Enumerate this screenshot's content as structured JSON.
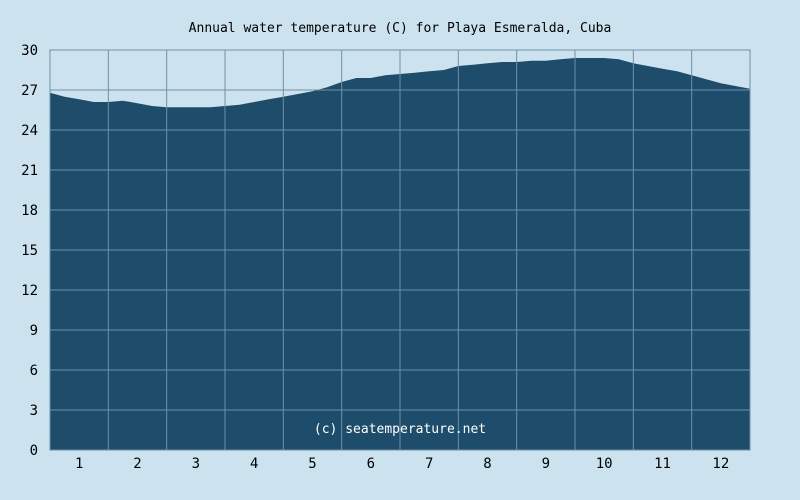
{
  "chart_data": {
    "type": "area",
    "title": "Annual water temperature (C) for Playa Esmeralda, Cuba",
    "xlabel": "",
    "ylabel": "",
    "categories": [
      "1",
      "2",
      "3",
      "4",
      "5",
      "6",
      "7",
      "8",
      "9",
      "10",
      "11",
      "12"
    ],
    "xlim": [
      0.5,
      12.5
    ],
    "ylim": [
      0,
      30
    ],
    "yticks": [
      0,
      3,
      6,
      9,
      12,
      15,
      18,
      21,
      24,
      27,
      30
    ],
    "grid": true,
    "legend": "none",
    "x": [
      0.5,
      0.75,
      1.0,
      1.25,
      1.5,
      1.75,
      2.0,
      2.25,
      2.5,
      2.75,
      3.0,
      3.25,
      3.5,
      3.75,
      4.0,
      4.25,
      4.5,
      4.75,
      5.0,
      5.25,
      5.5,
      5.75,
      6.0,
      6.25,
      6.5,
      6.75,
      7.0,
      7.25,
      7.5,
      7.75,
      8.0,
      8.25,
      8.5,
      8.75,
      9.0,
      9.25,
      9.5,
      9.75,
      10.0,
      10.25,
      10.5,
      10.75,
      11.0,
      11.25,
      11.5,
      11.75,
      12.0,
      12.25,
      12.5
    ],
    "series": [
      {
        "values": [
          26.8,
          26.5,
          26.3,
          26.1,
          26.1,
          26.2,
          26.0,
          25.8,
          25.7,
          25.7,
          25.7,
          25.7,
          25.8,
          25.9,
          26.1,
          26.3,
          26.5,
          26.7,
          26.9,
          27.2,
          27.6,
          27.9,
          27.9,
          28.1,
          28.2,
          28.3,
          28.4,
          28.5,
          28.8,
          28.9,
          29.0,
          29.1,
          29.1,
          29.2,
          29.2,
          29.3,
          29.4,
          29.4,
          29.4,
          29.3,
          29.0,
          28.8,
          28.6,
          28.4,
          28.1,
          27.8,
          27.5,
          27.3,
          27.1
        ]
      }
    ],
    "colors": {
      "fill": "#1e4d6b",
      "grid": "#6f8fa6",
      "background": "#cce3ef"
    }
  },
  "watermark": "(c) seatemperature.net"
}
